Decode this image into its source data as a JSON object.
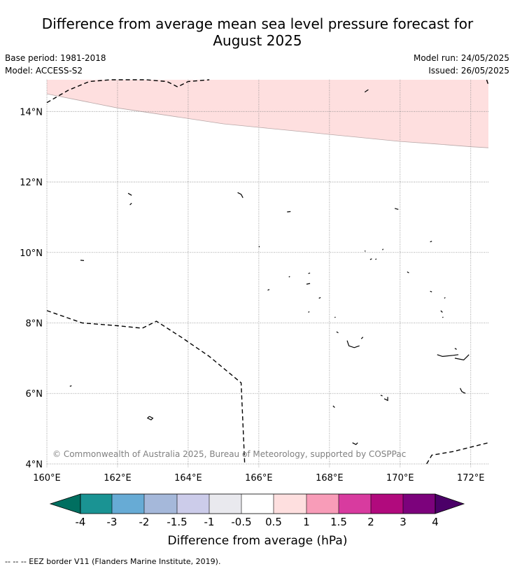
{
  "title_line1": "Difference from average mean sea level pressure forecast for",
  "title_line2": "August 2025",
  "base_period": "Base period: 1981-2018",
  "model": "Model: ACCESS-S2",
  "model_run": "Model run: 24/05/2025",
  "issued": "Issued: 26/05/2025",
  "copyright": "© Commonwealth of Australia 2025, Bureau of Meteorology, supported by COSPPac",
  "map": {
    "lon_range": [
      160,
      172.5
    ],
    "lat_range": [
      3.9,
      14.9
    ],
    "lon_ticks": [
      "160°E",
      "162°E",
      "164°E",
      "166°E",
      "168°E",
      "170°E",
      "172°E"
    ],
    "lat_ticks": [
      "4°N",
      "6°N",
      "8°N",
      "10°N",
      "12°N",
      "14°N"
    ],
    "anomaly_region": {
      "category": "0.5 to 1",
      "color": "#fedfdf",
      "boundary": [
        [
          160,
          14.5
        ],
        [
          161,
          14.3
        ],
        [
          162,
          14.1
        ],
        [
          163,
          13.95
        ],
        [
          164,
          13.8
        ],
        [
          165,
          13.65
        ],
        [
          166,
          13.55
        ],
        [
          167,
          13.45
        ],
        [
          168,
          13.35
        ],
        [
          169,
          13.25
        ],
        [
          170,
          13.15
        ],
        [
          171,
          13.08
        ],
        [
          172,
          13.0
        ],
        [
          172.5,
          12.97
        ]
      ]
    },
    "eez_borders": [
      [
        [
          160,
          14.25
        ],
        [
          160.6,
          14.6
        ],
        [
          161.2,
          14.85
        ],
        [
          161.8,
          14.98
        ],
        [
          162.8,
          15.0
        ],
        [
          163.4,
          14.85
        ],
        [
          163.7,
          14.7
        ],
        [
          164.0,
          14.85
        ],
        [
          164.6,
          15.0
        ]
      ],
      [
        [
          160,
          8.35
        ],
        [
          161.0,
          8.0
        ],
        [
          162.0,
          7.92
        ],
        [
          162.7,
          7.85
        ],
        [
          163.1,
          8.05
        ],
        [
          163.8,
          7.6
        ],
        [
          164.6,
          7.05
        ],
        [
          165.5,
          6.3
        ],
        [
          165.6,
          4.0
        ]
      ],
      [
        [
          170.75,
          4.0
        ],
        [
          170.9,
          4.25
        ],
        [
          171.5,
          4.35
        ],
        [
          172.5,
          4.6
        ]
      ],
      [
        [
          172.45,
          14.9
        ],
        [
          172.5,
          14.75
        ]
      ]
    ],
    "islands": [
      [
        [
          160.95,
          9.78
        ],
        [
          161.05,
          9.77
        ]
      ],
      [
        [
          160.65,
          6.2
        ],
        [
          160.7,
          6.22
        ]
      ],
      [
        [
          162.3,
          11.68
        ],
        [
          162.4,
          11.62
        ]
      ],
      [
        [
          162.35,
          11.35
        ],
        [
          162.4,
          11.4
        ]
      ],
      [
        [
          162.9,
          5.35
        ],
        [
          163.0,
          5.3
        ],
        [
          162.95,
          5.25
        ],
        [
          162.85,
          5.3
        ],
        [
          162.9,
          5.35
        ]
      ],
      [
        [
          165.4,
          11.7
        ],
        [
          165.5,
          11.65
        ],
        [
          165.55,
          11.55
        ]
      ],
      [
        [
          166.0,
          10.18
        ],
        [
          166.02,
          10.15
        ]
      ],
      [
        [
          166.25,
          8.93
        ],
        [
          166.3,
          8.95
        ]
      ],
      [
        [
          166.8,
          11.15
        ],
        [
          166.9,
          11.16
        ]
      ],
      [
        [
          166.85,
          9.3
        ],
        [
          166.88,
          9.32
        ]
      ],
      [
        [
          167.35,
          9.1
        ],
        [
          167.45,
          9.12
        ]
      ],
      [
        [
          167.4,
          9.4
        ],
        [
          167.45,
          9.42
        ]
      ],
      [
        [
          167.4,
          8.3
        ],
        [
          167.43,
          8.32
        ]
      ],
      [
        [
          167.7,
          8.7
        ],
        [
          167.75,
          8.72
        ]
      ],
      [
        [
          168.15,
          8.15
        ],
        [
          168.17,
          8.17
        ]
      ],
      [
        [
          168.2,
          7.75
        ],
        [
          168.25,
          7.72
        ]
      ],
      [
        [
          168.5,
          7.5
        ],
        [
          168.55,
          7.35
        ],
        [
          168.7,
          7.3
        ],
        [
          168.85,
          7.35
        ]
      ],
      [
        [
          168.9,
          7.55
        ],
        [
          168.95,
          7.6
        ]
      ],
      [
        [
          169.0,
          14.55
        ],
        [
          169.1,
          14.62
        ]
      ],
      [
        [
          169.0,
          10.05
        ],
        [
          169.02,
          10.03
        ]
      ],
      [
        [
          169.15,
          9.8
        ],
        [
          169.2,
          9.82
        ]
      ],
      [
        [
          169.3,
          9.8
        ],
        [
          169.33,
          9.82
        ]
      ],
      [
        [
          169.5,
          10.07
        ],
        [
          169.52,
          10.1
        ]
      ],
      [
        [
          169.45,
          5.95
        ],
        [
          169.5,
          5.93
        ]
      ],
      [
        [
          169.55,
          5.85
        ],
        [
          169.65,
          5.8
        ],
        [
          169.65,
          5.9
        ]
      ],
      [
        [
          169.85,
          11.25
        ],
        [
          169.95,
          11.22
        ]
      ],
      [
        [
          170.2,
          9.45
        ],
        [
          170.25,
          9.42
        ]
      ],
      [
        [
          170.85,
          10.3
        ],
        [
          170.9,
          10.32
        ]
      ],
      [
        [
          170.85,
          8.9
        ],
        [
          170.9,
          8.88
        ]
      ],
      [
        [
          171.15,
          8.35
        ],
        [
          171.2,
          8.3
        ]
      ],
      [
        [
          171.2,
          8.15
        ],
        [
          171.22,
          8.17
        ]
      ],
      [
        [
          171.25,
          8.7
        ],
        [
          171.28,
          8.72
        ]
      ],
      [
        [
          171.05,
          7.1
        ],
        [
          171.2,
          7.05
        ],
        [
          171.5,
          7.08
        ],
        [
          171.65,
          7.1
        ]
      ],
      [
        [
          171.55,
          7.28
        ],
        [
          171.6,
          7.25
        ]
      ],
      [
        [
          171.55,
          7.0
        ],
        [
          171.8,
          6.95
        ],
        [
          171.9,
          7.05
        ],
        [
          171.95,
          7.1
        ]
      ],
      [
        [
          171.7,
          6.15
        ],
        [
          171.75,
          6.05
        ],
        [
          171.85,
          6.0
        ]
      ],
      [
        [
          168.1,
          5.65
        ],
        [
          168.15,
          5.6
        ]
      ],
      [
        [
          168.65,
          4.6
        ],
        [
          168.75,
          4.55
        ],
        [
          168.8,
          4.6
        ]
      ]
    ]
  },
  "colorbar": {
    "label": "Difference from average (hPa)",
    "tick_labels": [
      "-4",
      "-3",
      "-2",
      "-1.5",
      "-1",
      "-0.5",
      "0.5",
      "1",
      "1.5",
      "2",
      "3",
      "4"
    ],
    "colors": [
      "#006f60",
      "#1a9393",
      "#67abd5",
      "#a5b8da",
      "#ccccea",
      "#e9e9ee",
      "#ffffff",
      "#fedfdf",
      "#f89cb8",
      "#d83b9f",
      "#b10a7d",
      "#7c027c",
      "#4b0068"
    ]
  },
  "legend_border": "--  --  -- EEZ border V11 (Flanders Marine Institute, 2019)."
}
